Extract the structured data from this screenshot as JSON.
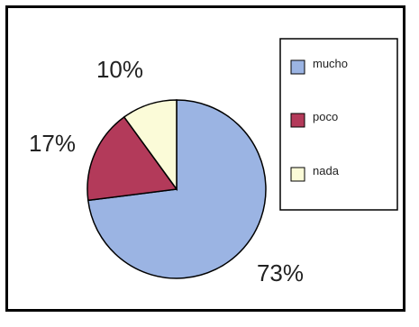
{
  "chart_data": {
    "type": "pie",
    "categories": [
      "mucho",
      "poco",
      "nada"
    ],
    "values": [
      73,
      17,
      10
    ],
    "labels": [
      "73%",
      "17%",
      "10%"
    ],
    "colors": [
      "#9bb4e3",
      "#b33a5a",
      "#fbfbd8"
    ],
    "legend_placement": "right",
    "title": ""
  }
}
